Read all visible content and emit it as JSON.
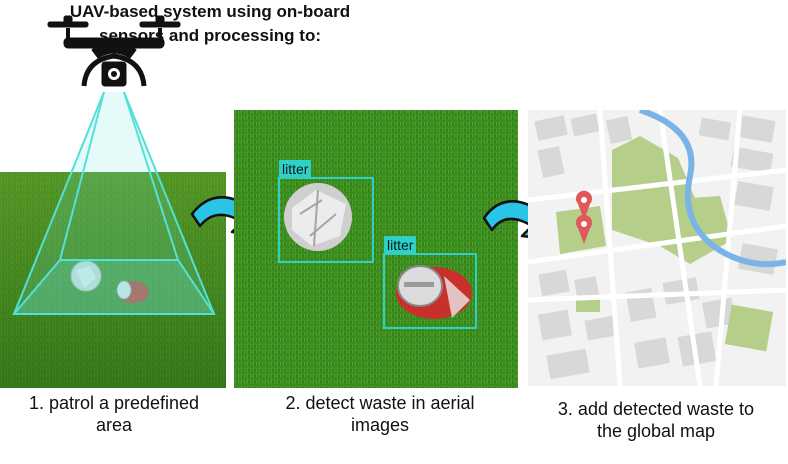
{
  "title_line1": "UAV-based system using on-board",
  "title_line2": "sensors and processing to:",
  "steps": [
    {
      "caption_line1": "1. patrol a predefined",
      "caption_line2": "area"
    },
    {
      "caption_line1": "2. detect waste in aerial",
      "caption_line2": "images"
    },
    {
      "caption_line1": "3. add detected waste to",
      "caption_line2": "the global map"
    }
  ],
  "detections": [
    {
      "label": "litter"
    },
    {
      "label": "litter"
    }
  ],
  "icons": {
    "drone": "drone-icon",
    "arrow": "curved-arrow-icon",
    "pin": "map-pin-icon"
  },
  "colors": {
    "grass": "#3f7f1e",
    "sky": "#ffffff",
    "detection_box": "#2fd0c8",
    "arrow_fill": "#29c4e6",
    "map_bg": "#f2f2f2",
    "map_park": "#b5cf8a",
    "map_river": "#7ab4e6",
    "pin": "#e0585a"
  }
}
